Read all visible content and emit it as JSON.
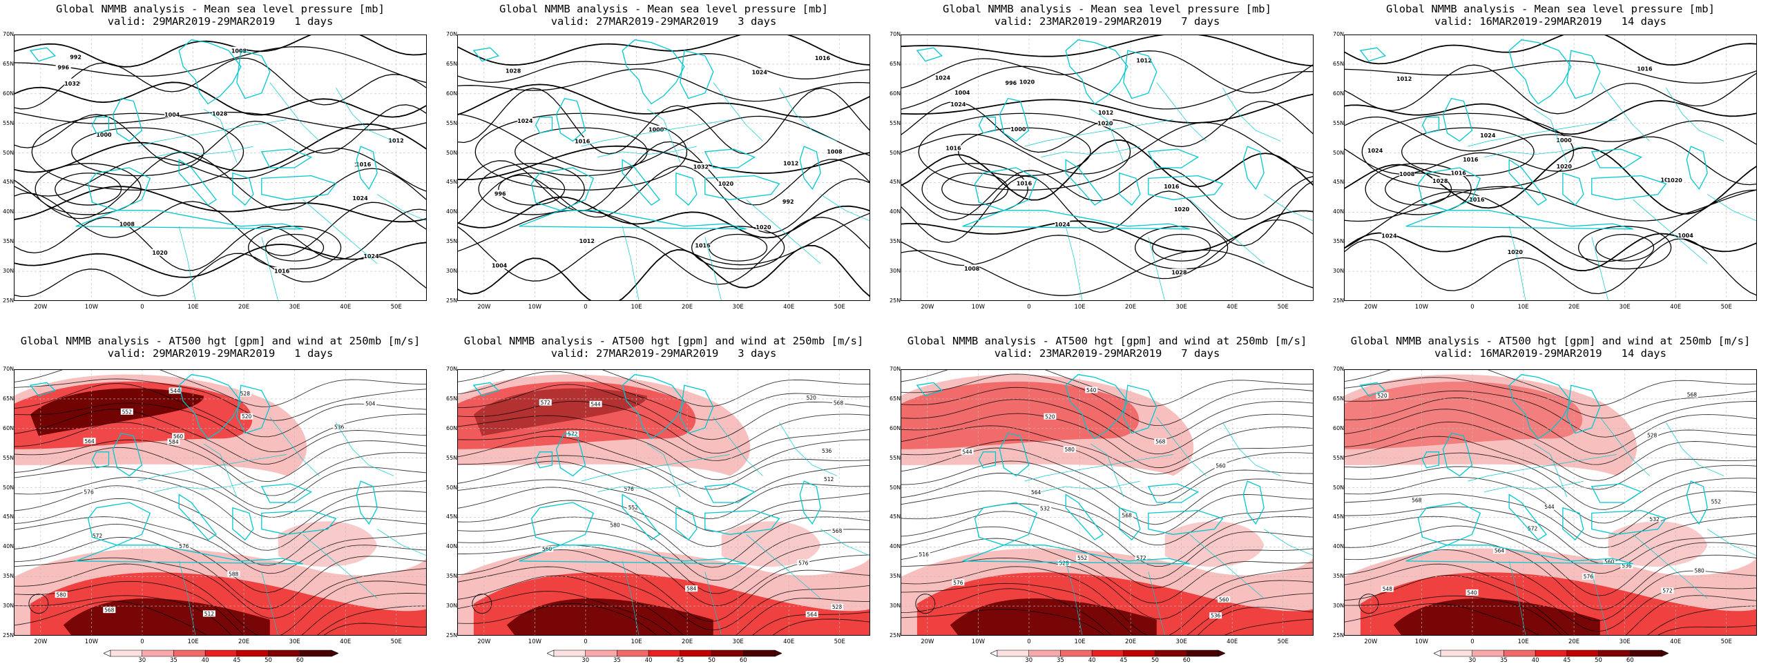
{
  "rows": [
    {
      "row_id": "mslp",
      "panels": [
        {
          "title": "Global NMMB analysis - Mean sea level pressure [mb]",
          "valid": "valid: 29MAR2019-29MAR2019   1 days"
        },
        {
          "title": "Global NMMB analysis - Mean sea level pressure [mb]",
          "valid": "valid: 27MAR2019-29MAR2019   3 days"
        },
        {
          "title": "Global NMMB analysis - Mean sea level pressure [mb]",
          "valid": "valid: 23MAR2019-29MAR2019   7 days"
        },
        {
          "title": "Global NMMB analysis - Mean sea level pressure [mb]",
          "valid": "valid: 16MAR2019-29MAR2019   14 days"
        }
      ]
    },
    {
      "row_id": "at500",
      "panels": [
        {
          "title": "Global NMMB analysis - AT500 hgt [gpm] and wind at 250mb [m/s]",
          "valid": "valid: 29MAR2019-29MAR2019   1 days"
        },
        {
          "title": "Global NMMB analysis - AT500 hgt [gpm] and wind at 250mb [m/s]",
          "valid": "valid: 27MAR2019-29MAR2019   3 days"
        },
        {
          "title": "Global NMMB analysis - AT500 hgt [gpm] and wind at 250mb [m/s]",
          "valid": "valid: 23MAR2019-29MAR2019   7 days"
        },
        {
          "title": "Global NMMB analysis - AT500 hgt [gpm] and wind at 250mb [m/s]",
          "valid": "valid: 16MAR2019-29MAR2019   14 days"
        }
      ]
    }
  ],
  "lat_labels": [
    "70N",
    "65N",
    "60N",
    "55N",
    "50N",
    "45N",
    "40N",
    "35N",
    "30N",
    "25N"
  ],
  "lon_labels": [
    "20W",
    "10W",
    "0",
    "10E",
    "20E",
    "30E",
    "40E",
    "50E"
  ],
  "colorbar": {
    "labels": [
      "30",
      "35",
      "40",
      "45",
      "50",
      "60"
    ],
    "colors": [
      "#fde0e0",
      "#f8a8a8",
      "#f06a6a",
      "#e82020",
      "#c00000",
      "#800000",
      "#4a0000"
    ]
  },
  "colors": {
    "coastline": "#00c8d0",
    "contour": "#000000",
    "wind_light": "#f7b4b4",
    "wind_mid": "#ee3333",
    "wind_dark": "#6a0000"
  },
  "mslp_labels": [
    [
      "992",
      "996",
      "1000",
      "1004",
      "1008",
      "1012",
      "1016",
      "1020",
      "1024",
      "1028",
      "1032",
      "1008",
      "1016",
      "1020",
      "1024",
      "1016"
    ],
    [
      "992",
      "996",
      "1000",
      "1004",
      "1008",
      "1012",
      "1016",
      "1020",
      "1024",
      "1028",
      "1032",
      "1024",
      "1020",
      "1016",
      "1012",
      "1016"
    ],
    [
      "996",
      "1000",
      "1004",
      "1008",
      "1012",
      "1016",
      "1020",
      "1024",
      "1028",
      "1024",
      "1020",
      "1016",
      "1012",
      "1016",
      "1020",
      "1024"
    ],
    [
      "1000",
      "1004",
      "1008",
      "1012",
      "1016",
      "1020",
      "1024",
      "1028",
      "1024",
      "1020",
      "1016",
      "1012",
      "1016",
      "1020",
      "1016",
      "1024"
    ]
  ],
  "z500_labels": [
    [
      "504",
      "512",
      "520",
      "528",
      "536",
      "544",
      "552",
      "560",
      "564",
      "568",
      "572",
      "576",
      "580",
      "584",
      "588",
      "576"
    ],
    [
      "512",
      "520",
      "528",
      "536",
      "544",
      "552",
      "560",
      "564",
      "568",
      "572",
      "576",
      "580",
      "584",
      "576",
      "572",
      "568"
    ],
    [
      "516",
      "520",
      "528",
      "532",
      "536",
      "540",
      "544",
      "552",
      "560",
      "564",
      "568",
      "572",
      "576",
      "580",
      "560",
      "568"
    ],
    [
      "520",
      "528",
      "532",
      "536",
      "540",
      "544",
      "548",
      "552",
      "560",
      "564",
      "568",
      "572",
      "576",
      "580",
      "572",
      "568"
    ]
  ]
}
